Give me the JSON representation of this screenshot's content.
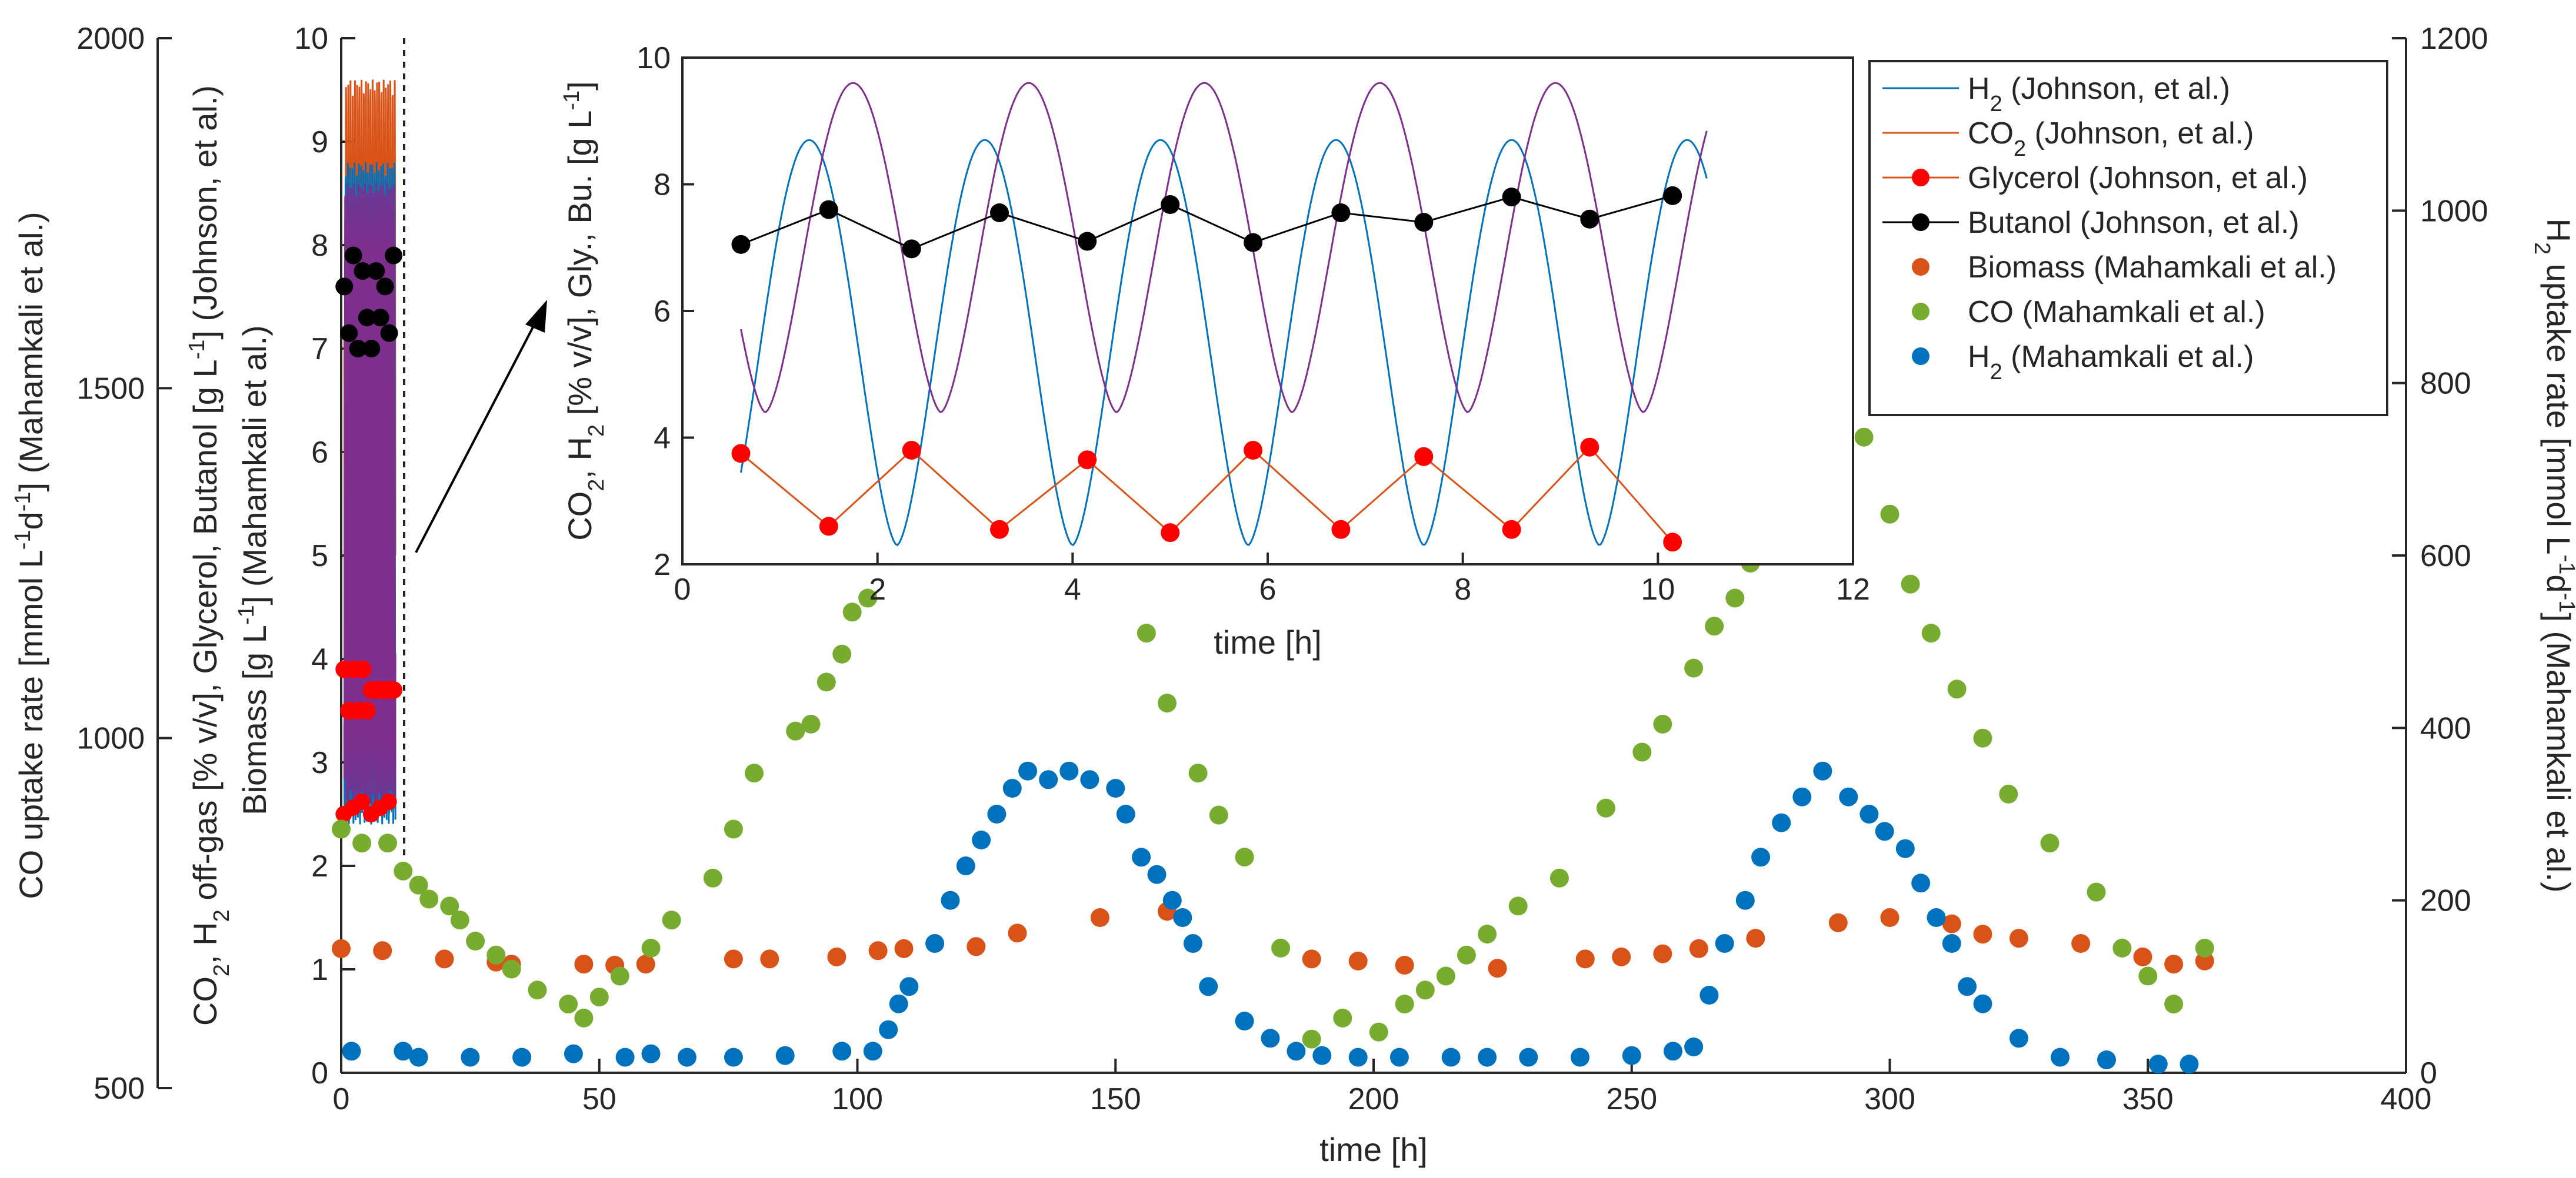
{
  "chart_data": [
    {
      "type": "scatter",
      "name": "main",
      "title": "",
      "xlabel": "time [h]",
      "ylabel_left_outer": "CO uptake rate [mmol L^-1 d^-1] (Mahamkali et al.)",
      "ylabel_left_inner": "CO2, H2 off-gas [% v/v], Glycerol, Butanol [g L^-1] (Johnson, et al.)",
      "ylabel_left_inner2": "Biomass [g L^-1] (Mahamkali et al.)",
      "ylabel_right": "H2 uptake rate [mmol L^-1 d^-1] (Mahamkali et al.)",
      "xlim": [
        0,
        400
      ],
      "ylim_inner": [
        0,
        10
      ],
      "ylim_outer": [
        500,
        2000
      ],
      "ylim_right": [
        0,
        1200
      ],
      "xticks": [
        "0",
        "50",
        "100",
        "150",
        "200",
        "250",
        "300",
        "350",
        "400"
      ],
      "yticks_inner": [
        "0",
        "1",
        "2",
        "3",
        "4",
        "5",
        "6",
        "7",
        "8",
        "9",
        "10"
      ],
      "yticks_outer": [
        "500",
        "1000",
        "1500",
        "2000"
      ],
      "yticks_right": [
        "0",
        "200",
        "400",
        "600",
        "800",
        "1000",
        "1200"
      ],
      "series": [
        {
          "name": "Biomass (Mahamkali et al.)",
          "color": "#d95319",
          "axis": "inner",
          "x": [
            0,
            8,
            20,
            30,
            33,
            47,
            53,
            59,
            76,
            83,
            96,
            104,
            109,
            123,
            131,
            147,
            160,
            188,
            197,
            206,
            224,
            241,
            248,
            256,
            263,
            274,
            290,
            300,
            312,
            318,
            325,
            337,
            349,
            355,
            361
          ],
          "y": [
            1.2,
            1.18,
            1.1,
            1.07,
            1.05,
            1.05,
            1.04,
            1.05,
            1.1,
            1.1,
            1.12,
            1.18,
            1.2,
            1.22,
            1.35,
            1.5,
            1.56,
            1.1,
            1.08,
            1.04,
            1.01,
            1.1,
            1.12,
            1.15,
            1.2,
            1.3,
            1.45,
            1.5,
            1.44,
            1.34,
            1.3,
            1.25,
            1.12,
            1.05,
            1.08
          ]
        },
        {
          "name": "CO (Mahamkali et al.)",
          "color": "#77ac30",
          "axis": "outer",
          "x": [
            0,
            4,
            9,
            12,
            15,
            17,
            21,
            23,
            26,
            30,
            33,
            38,
            44,
            47,
            50,
            54,
            60,
            64,
            72,
            76,
            80,
            88,
            91,
            94,
            97,
            99,
            102,
            107,
            111,
            113,
            115,
            117,
            120,
            123,
            127,
            131,
            135,
            140,
            146,
            150,
            154,
            156,
            160,
            166,
            170,
            175,
            182,
            188,
            194,
            201,
            206,
            210,
            214,
            218,
            222,
            228,
            236,
            245,
            252,
            256,
            262,
            266,
            270,
            273,
            275,
            278,
            283,
            288,
            295,
            300,
            304,
            308,
            313,
            318,
            323,
            331,
            340,
            345,
            350,
            355,
            361
          ],
          "y": [
            870,
            850,
            850,
            810,
            790,
            770,
            760,
            740,
            710,
            690,
            670,
            640,
            620,
            600,
            630,
            660,
            700,
            740,
            800,
            870,
            950,
            1010,
            1020,
            1080,
            1120,
            1180,
            1200,
            1260,
            1300,
            1330,
            1350,
            1380,
            1370,
            1410,
            1440,
            1460,
            1440,
            1470,
            1450,
            1410,
            1300,
            1150,
            1050,
            950,
            890,
            830,
            700,
            570,
            600,
            580,
            620,
            640,
            660,
            690,
            720,
            760,
            800,
            900,
            980,
            1020,
            1100,
            1160,
            1200,
            1250,
            1300,
            1350,
            1420,
            1460,
            1430,
            1320,
            1220,
            1150,
            1070,
            1000,
            920,
            850,
            780,
            700,
            660,
            620,
            700
          ]
        },
        {
          "name": "H2 (Mahamkali et al.)",
          "color": "#0072bd",
          "axis": "right",
          "x": [
            2,
            12,
            15,
            25,
            35,
            45,
            55,
            60,
            67,
            76,
            86,
            97,
            103,
            106,
            108,
            110,
            115,
            118,
            121,
            124,
            127,
            130,
            133,
            137,
            141,
            145,
            150,
            152,
            155,
            158,
            161,
            163,
            165,
            168,
            175,
            180,
            185,
            190,
            197,
            205,
            215,
            222,
            230,
            240,
            250,
            258,
            262,
            265,
            268,
            272,
            275,
            279,
            283,
            287,
            292,
            296,
            299,
            303,
            306,
            309,
            312,
            315,
            318,
            325,
            333,
            342,
            352,
            358
          ],
          "y": [
            25,
            25,
            18,
            18,
            18,
            22,
            18,
            22,
            18,
            18,
            20,
            25,
            25,
            50,
            80,
            100,
            150,
            200,
            240,
            270,
            300,
            330,
            350,
            340,
            350,
            340,
            330,
            300,
            250,
            230,
            200,
            180,
            150,
            100,
            60,
            40,
            25,
            20,
            18,
            18,
            18,
            18,
            18,
            18,
            20,
            25,
            30,
            90,
            150,
            200,
            250,
            290,
            320,
            350,
            320,
            300,
            280,
            260,
            220,
            180,
            150,
            100,
            80,
            40,
            18,
            15,
            10,
            10
          ]
        }
      ]
    },
    {
      "type": "line",
      "name": "inset",
      "title": "",
      "xlabel": "time [h]",
      "ylabel": "CO2, H2 [% v/v], Gly., Bu. [g L^-1]",
      "xlim": [
        0,
        12
      ],
      "ylim": [
        2,
        10
      ],
      "xticks": [
        "0",
        "2",
        "4",
        "6",
        "8",
        "10",
        "12"
      ],
      "yticks": [
        "2",
        "4",
        "6",
        "8",
        "10"
      ],
      "series": [
        {
          "name": "H2 (Johnson, et al.)",
          "color": "#0072bd",
          "type": "line",
          "period": 1.8,
          "min": 2.3,
          "max": 8.7
        },
        {
          "name": "CO2 (Johnson, et al.)",
          "color": "#d95319",
          "type": "line",
          "period": 1.8,
          "min": 4.4,
          "max": 9.6
        },
        {
          "name": "Glycerol (Johnson, et al.)",
          "color": "#ff0000",
          "type": "line-markers",
          "x": [
            0.6,
            1.5,
            2.35,
            3.25,
            4.15,
            5.0,
            5.85,
            6.75,
            7.6,
            8.5,
            9.3,
            10.15
          ],
          "y": [
            3.75,
            2.6,
            3.8,
            2.55,
            3.65,
            2.5,
            3.8,
            2.55,
            3.7,
            2.55,
            3.85,
            2.35
          ]
        },
        {
          "name": "Butanol (Johnson, et al.)",
          "color": "#000000",
          "type": "line-markers",
          "x": [
            0.6,
            1.5,
            2.35,
            3.25,
            4.15,
            5.0,
            5.85,
            6.75,
            7.6,
            8.5,
            9.3,
            10.15
          ],
          "y": [
            7.05,
            7.6,
            6.98,
            7.55,
            7.1,
            7.68,
            7.08,
            7.55,
            7.4,
            7.8,
            7.45,
            7.82
          ]
        }
      ]
    }
  ],
  "legend": {
    "items": [
      {
        "label": "H",
        "sub": "2",
        "rest": " (Johnson, et al.)",
        "kind": "line",
        "color": "#0072bd"
      },
      {
        "label": "CO",
        "sub": "2",
        "rest": " (Johnson, et al.)",
        "kind": "line",
        "color": "#d95319"
      },
      {
        "label": "Glycerol (Johnson, et al.)",
        "sub": "",
        "rest": "",
        "kind": "line-marker",
        "color": "#ff0000"
      },
      {
        "label": "Butanol (Johnson, et al.)",
        "sub": "",
        "rest": "",
        "kind": "line-marker",
        "color": "#000000"
      },
      {
        "label": "Biomass (Mahamkali et al.)",
        "sub": "",
        "rest": "",
        "kind": "marker",
        "color": "#d95319"
      },
      {
        "label": "CO (Mahamkali et al.)",
        "sub": "",
        "rest": "",
        "kind": "marker",
        "color": "#77ac30"
      },
      {
        "label": "H",
        "sub": "2",
        "rest": " (Mahamkali et al.)",
        "kind": "marker",
        "color": "#0072bd"
      }
    ]
  }
}
